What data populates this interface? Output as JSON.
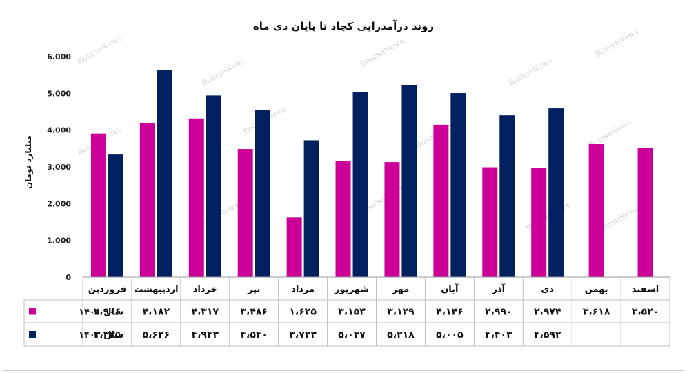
{
  "chart_data": {
    "type": "bar",
    "title": "روند درآمدزایی کچاد تا پایان دی ماه",
    "ylabel": "میلیارد تومان",
    "ylim": [
      0,
      6000
    ],
    "yticks": [
      "0",
      "1،000",
      "2،000",
      "3،000",
      "4،000",
      "5،000",
      "6،000"
    ],
    "categories": [
      "فروردین",
      "اردیبهشت",
      "خرداد",
      "تیر",
      "مرداد",
      "شهریور",
      "مهر",
      "آبان",
      "آذر",
      "دی",
      "بهمن",
      "اسفند"
    ],
    "series": [
      {
        "name": "سال ۱۴۰۱",
        "color": "#cc0099",
        "values": [
          3906,
          4182,
          4317,
          3486,
          1625,
          3153,
          3129,
          4146,
          2990,
          2974,
          3618,
          3520
        ],
        "labels": [
          "۳،۹۰۶",
          "۴،۱۸۲",
          "۴،۳۱۷",
          "۳،۴۸۶",
          "۱،۶۲۵",
          "۳،۱۵۳",
          "۳،۱۲۹",
          "۴،۱۴۶",
          "۲،۹۹۰",
          "۲،۹۷۴",
          "۳،۶۱۸",
          "۳،۵۲۰"
        ]
      },
      {
        "name": "سال ۱۴۰۲",
        "color": "#002060",
        "values": [
          3335,
          5626,
          4943,
          4540,
          3723,
          5037,
          5218,
          5005,
          4403,
          4592,
          null,
          null
        ],
        "labels": [
          "۳،۳۳۵",
          "۵،۶۲۶",
          "۴،۹۴۳",
          "۴،۵۴۰",
          "۳،۷۲۳",
          "۵،۰۳۷",
          "۵،۲۱۸",
          "۵،۰۰۵",
          "۴،۴۰۳",
          "۴،۵۹۲",
          "",
          ""
        ]
      }
    ],
    "grid": false,
    "legend": "data-table-left",
    "watermark": "BourseNews"
  }
}
